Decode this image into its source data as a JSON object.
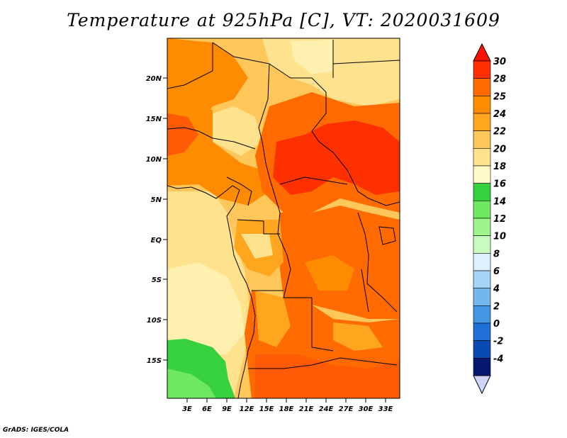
{
  "title": "Temperature at 925hPa [C], VT: 2020031609",
  "footer": "GrADS: IGES/COLA",
  "map": {
    "lat_labels": [
      "20N",
      "15N",
      "10N",
      "5N",
      "EQ",
      "5S",
      "10S",
      "15S"
    ],
    "lon_labels": [
      "3E",
      "6E",
      "9E",
      "12E",
      "15E",
      "18E",
      "21E",
      "24E",
      "27E",
      "30E",
      "33E"
    ]
  },
  "colorbar": {
    "labels": [
      "30",
      "28",
      "25",
      "24",
      "22",
      "20",
      "18",
      "16",
      "14",
      "12",
      "10",
      "8",
      "6",
      "4",
      "2",
      "0",
      "-2",
      "-4"
    ],
    "colors": [
      "#ff3000",
      "#ff6b00",
      "#ff8c00",
      "#ffa61e",
      "#ffc65a",
      "#ffe28e",
      "#fffac8",
      "#37d13d",
      "#6ee85f",
      "#9ef58d",
      "#c8fbc0",
      "#dcf0ff",
      "#a4d5f7",
      "#72b7ee",
      "#4596e2",
      "#1f6fd6",
      "#0a4bb3",
      "#03186e"
    ],
    "top_arrow_color": "#ff1000",
    "bottom_arrow_color": "#cfd3f7"
  },
  "field_colors": {
    "deep_red": "#ff3000",
    "red_orange": "#ff5a05",
    "orange": "#ff8c00",
    "light_orange": "#ffa61e",
    "pale_orange": "#ffc65a",
    "cream": "#ffe28e",
    "light_cream": "#fff0b0",
    "green": "#37d13d",
    "light_green": "#6ee85f"
  }
}
